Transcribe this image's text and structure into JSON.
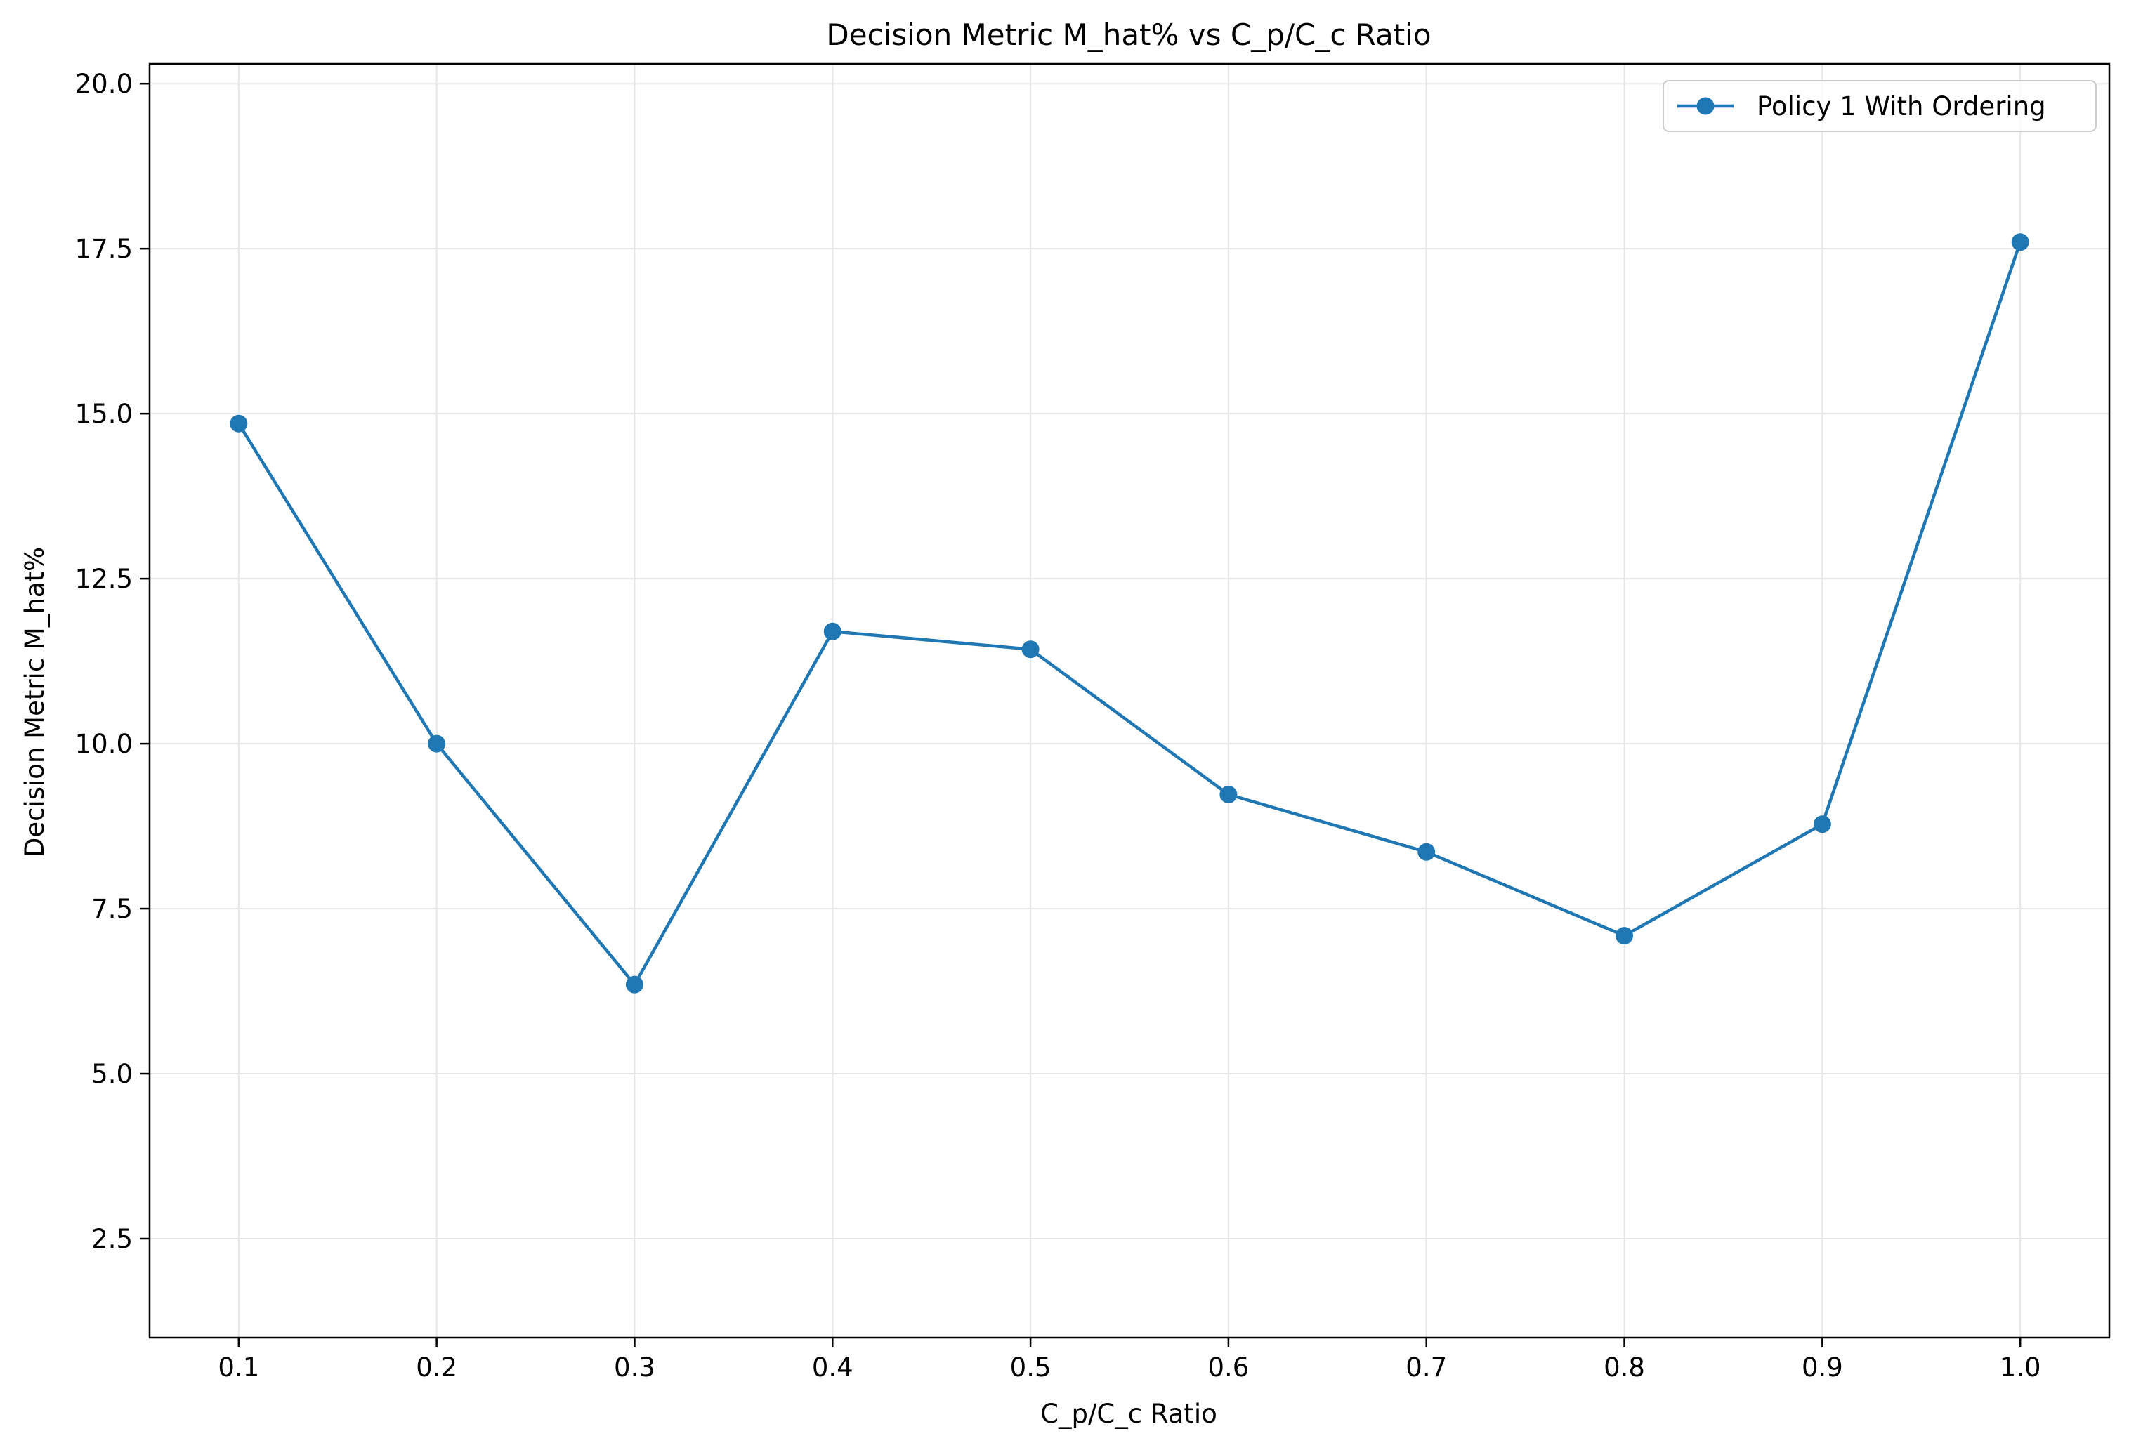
{
  "chart_data": {
    "type": "line",
    "title": "Decision Metric M_hat% vs C_p/C_c Ratio",
    "xlabel": "C_p/C_c Ratio",
    "ylabel": "Decision Metric M_hat%",
    "xlim": [
      0.055,
      1.045
    ],
    "ylim": [
      1.0,
      20.3
    ],
    "x_ticks": [
      0.1,
      0.2,
      0.3,
      0.4,
      0.5,
      0.6,
      0.7,
      0.8,
      0.9,
      1.0
    ],
    "x_tick_labels": [
      "0.1",
      "0.2",
      "0.3",
      "0.4",
      "0.5",
      "0.6",
      "0.7",
      "0.8",
      "0.9",
      "1.0"
    ],
    "y_ticks": [
      2.5,
      5.0,
      7.5,
      10.0,
      12.5,
      15.0,
      17.5,
      20.0
    ],
    "y_tick_labels": [
      "2.5",
      "5.0",
      "7.5",
      "10.0",
      "12.5",
      "15.0",
      "17.5",
      "20.0"
    ],
    "grid": true,
    "legend_position": "top-right",
    "series": [
      {
        "name": "Policy 1 With Ordering",
        "color": "#1f77b4",
        "marker": "circle",
        "x": [
          0.1,
          0.2,
          0.3,
          0.4,
          0.5,
          0.6,
          0.7,
          0.8,
          0.9,
          1.0
        ],
        "y": [
          14.85,
          10.0,
          6.35,
          11.7,
          11.43,
          9.23,
          8.36,
          7.09,
          8.78,
          17.6
        ]
      }
    ]
  }
}
